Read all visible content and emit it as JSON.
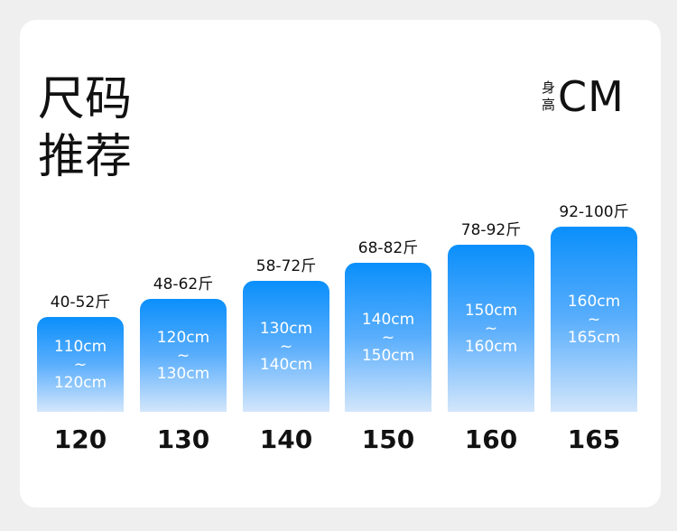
{
  "header": {
    "title_line1": "尺码",
    "title_line2": "推荐",
    "unit_small_1": "身",
    "unit_small_2": "高",
    "unit_big": "CM"
  },
  "chart_data": {
    "type": "bar",
    "categories": [
      "120",
      "130",
      "140",
      "150",
      "160",
      "165"
    ],
    "weight_labels": [
      "40-52斤",
      "48-62斤",
      "58-72斤",
      "68-82斤",
      "78-92斤",
      "92-100斤"
    ],
    "height_from": [
      "110cm",
      "120cm",
      "130cm",
      "140cm",
      "150cm",
      "160cm"
    ],
    "height_to": [
      "120cm",
      "130cm",
      "140cm",
      "150cm",
      "160cm",
      "165cm"
    ],
    "separator": "~",
    "values": [
      1,
      2,
      3,
      4,
      5,
      6
    ],
    "colors": {
      "bar_top": "#0a8ffb",
      "bar_bottom": "#d3e6fb"
    }
  }
}
